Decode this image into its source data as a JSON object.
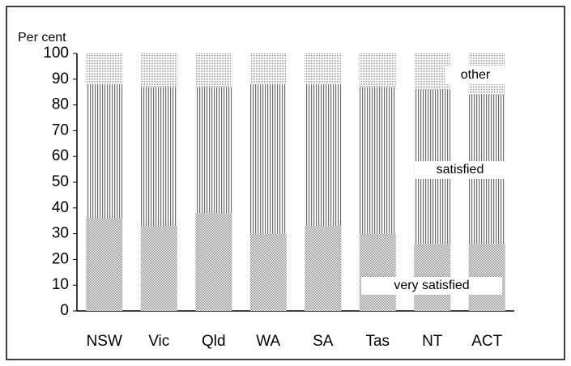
{
  "chart_data": {
    "type": "stacked_bar",
    "y_label": "Per cent",
    "categories": [
      "NSW",
      "Vic",
      "Qld",
      "WA",
      "SA",
      "Tas",
      "NT",
      "ACT"
    ],
    "series": [
      {
        "name": "very satisfied",
        "color": "#8a8a8a",
        "values": [
          36,
          33,
          38,
          30,
          33,
          30,
          26,
          26
        ]
      },
      {
        "name": "satisfied",
        "color": "#6e6e6e",
        "values": [
          52,
          54,
          49,
          58,
          55,
          57,
          60,
          58
        ]
      },
      {
        "name": "other",
        "color": "#9a9a9a",
        "values": [
          12,
          13,
          13,
          12,
          12,
          13,
          14,
          16
        ]
      }
    ],
    "ylim": [
      0,
      100
    ],
    "yticks": [
      0,
      10,
      20,
      30,
      40,
      50,
      60,
      70,
      80,
      90,
      100
    ]
  }
}
